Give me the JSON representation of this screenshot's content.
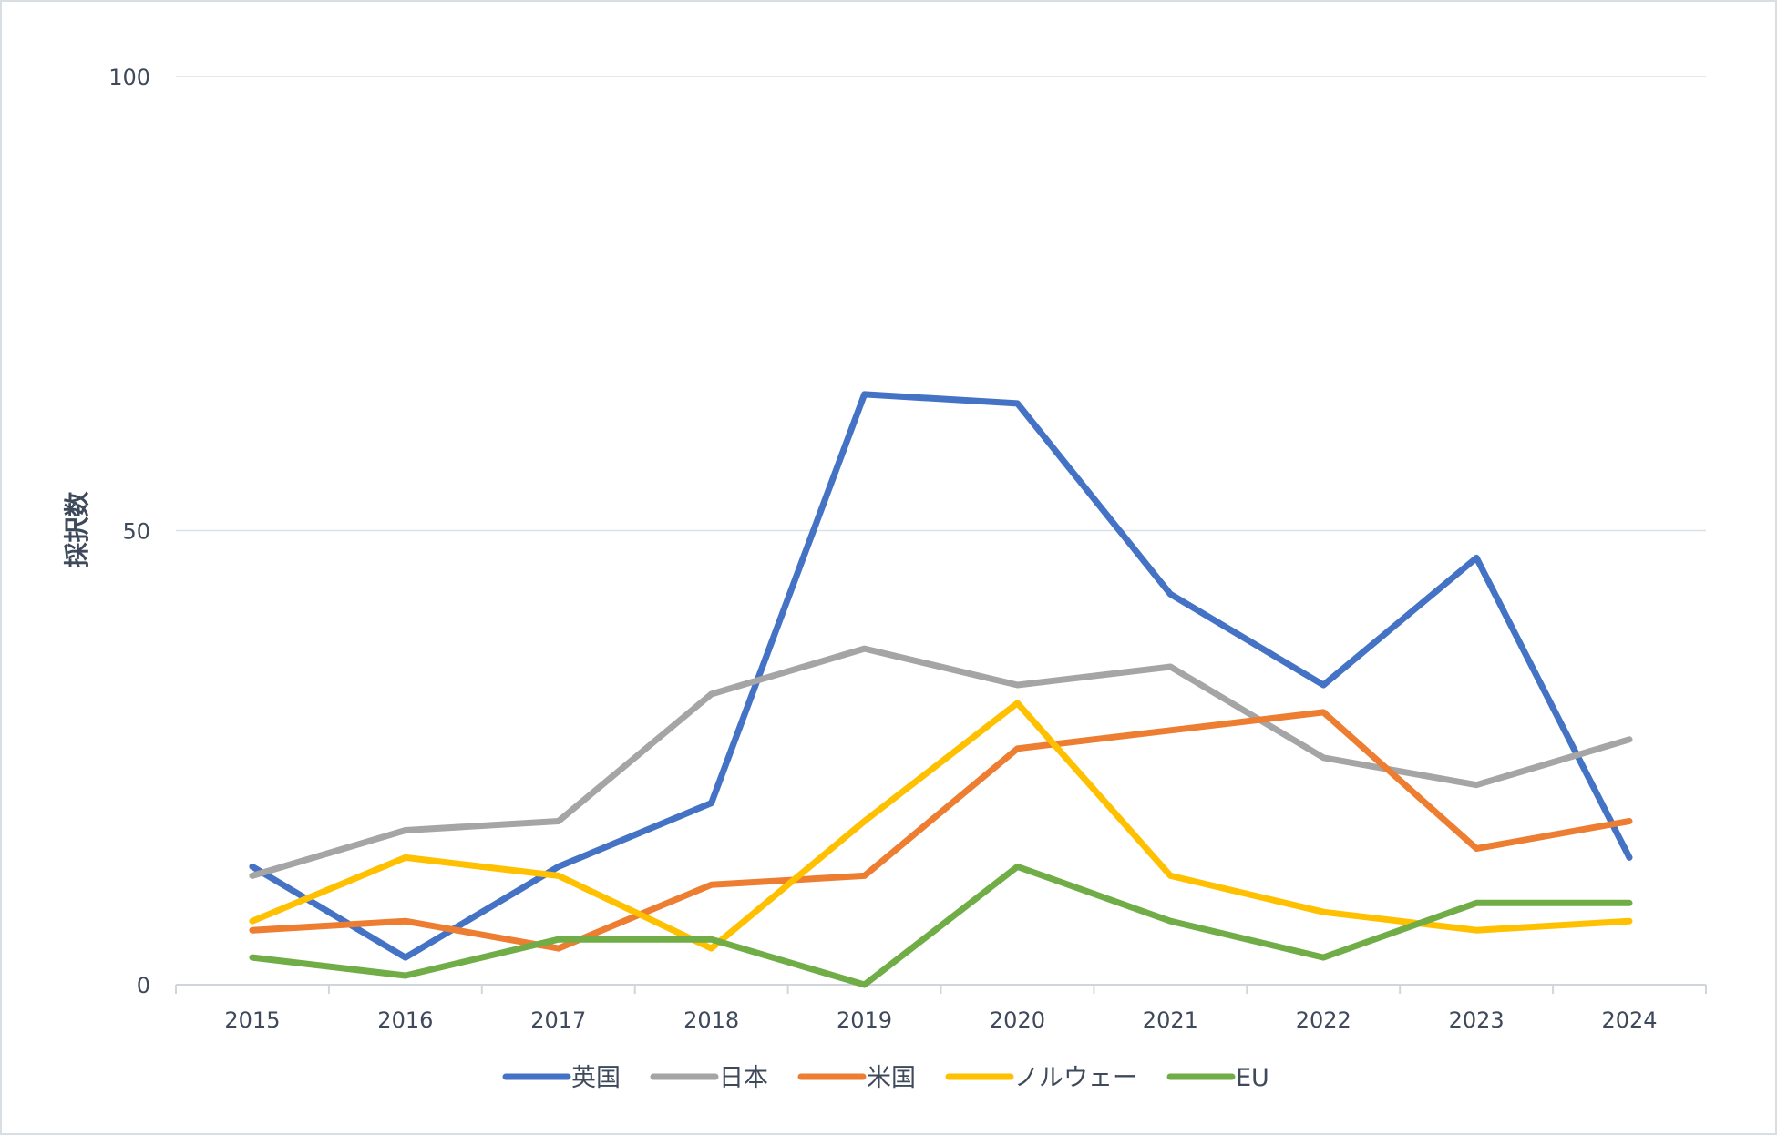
{
  "chart_data": {
    "type": "line",
    "title": "",
    "xlabel": "",
    "ylabel": "採択数",
    "ylim": [
      0,
      100
    ],
    "yticks": [
      0,
      50,
      100
    ],
    "grid": true,
    "legend_position": "bottom",
    "categories": [
      "2015",
      "2016",
      "2017",
      "2018",
      "2019",
      "2020",
      "2021",
      "2022",
      "2023",
      "2024"
    ],
    "series": [
      {
        "name": "英国",
        "color": "#4472c4",
        "values": [
          13,
          3,
          13,
          20,
          65,
          64,
          43,
          33,
          47,
          14
        ]
      },
      {
        "name": "日本",
        "color": "#a5a5a5",
        "values": [
          12,
          17,
          18,
          32,
          37,
          33,
          35,
          25,
          22,
          27
        ]
      },
      {
        "name": "米国",
        "color": "#ed7d31",
        "values": [
          6,
          7,
          4,
          11,
          12,
          26,
          28,
          30,
          15,
          18
        ]
      },
      {
        "name": "ノルウェー",
        "color": "#ffc000",
        "values": [
          7,
          14,
          12,
          4,
          18,
          31,
          12,
          8,
          6,
          7
        ]
      },
      {
        "name": "EU",
        "color": "#70ad47",
        "values": [
          3,
          1,
          5,
          5,
          0,
          13,
          7,
          3,
          9,
          9
        ]
      }
    ]
  }
}
